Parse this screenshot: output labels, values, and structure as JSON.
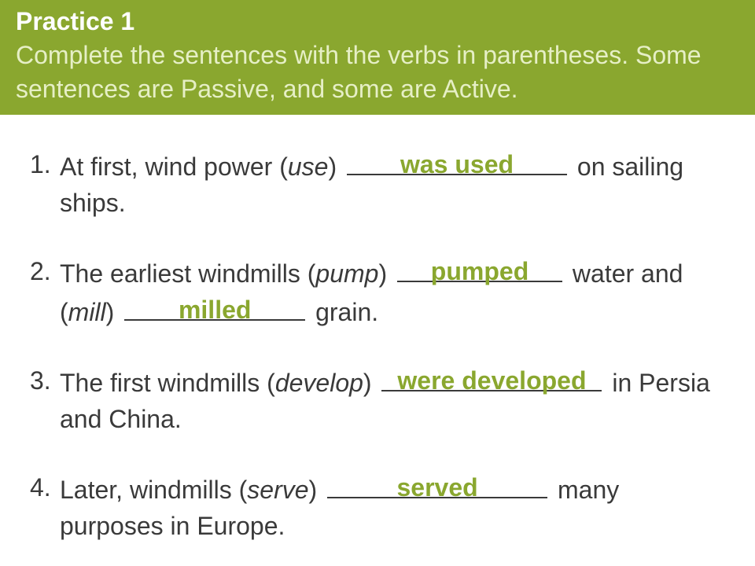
{
  "colors": {
    "header_bg": "#8aa72f",
    "header_text": "#ffffff",
    "subtitle_text": "#e6efc6",
    "body_text": "#3a3a3a",
    "answer_text": "#8aa72f",
    "blank_border": "#3a3a3a",
    "background": "#ffffff"
  },
  "typography": {
    "header_fontsize": 32,
    "body_fontsize": 32,
    "answer_weight": 700
  },
  "header": {
    "title": "Practice 1",
    "subtitle": "Complete the sentences with the verbs in parentheses. Some sentences are Passive, and some are Active."
  },
  "items": [
    {
      "num": "1.",
      "pre1": "At first, wind power (",
      "hint1": "use",
      "mid1": ") ",
      "answer1": "was used",
      "blank1_width": 280,
      "post1": " on sailing ships."
    },
    {
      "num": "2.",
      "pre1": "The earliest windmills (",
      "hint1": "pump",
      "mid1": ") ",
      "answer1": "pumped",
      "blank1_width": 210,
      "mid2": " water and (",
      "hint2": "mill",
      "mid3": ") ",
      "answer2": "milled",
      "blank2_width": 230,
      "post1": " grain."
    },
    {
      "num": "3.",
      "pre1": "The first windmills (",
      "hint1": "develop",
      "mid1": ") ",
      "answer1": "were developed",
      "blank1_width": 280,
      "post1": " in Persia and China."
    },
    {
      "num": "4.",
      "pre1": "Later, windmills (",
      "hint1": "serve",
      "mid1": ") ",
      "answer1": "served",
      "blank1_width": 280,
      "post1": " many purposes in Europe."
    }
  ]
}
